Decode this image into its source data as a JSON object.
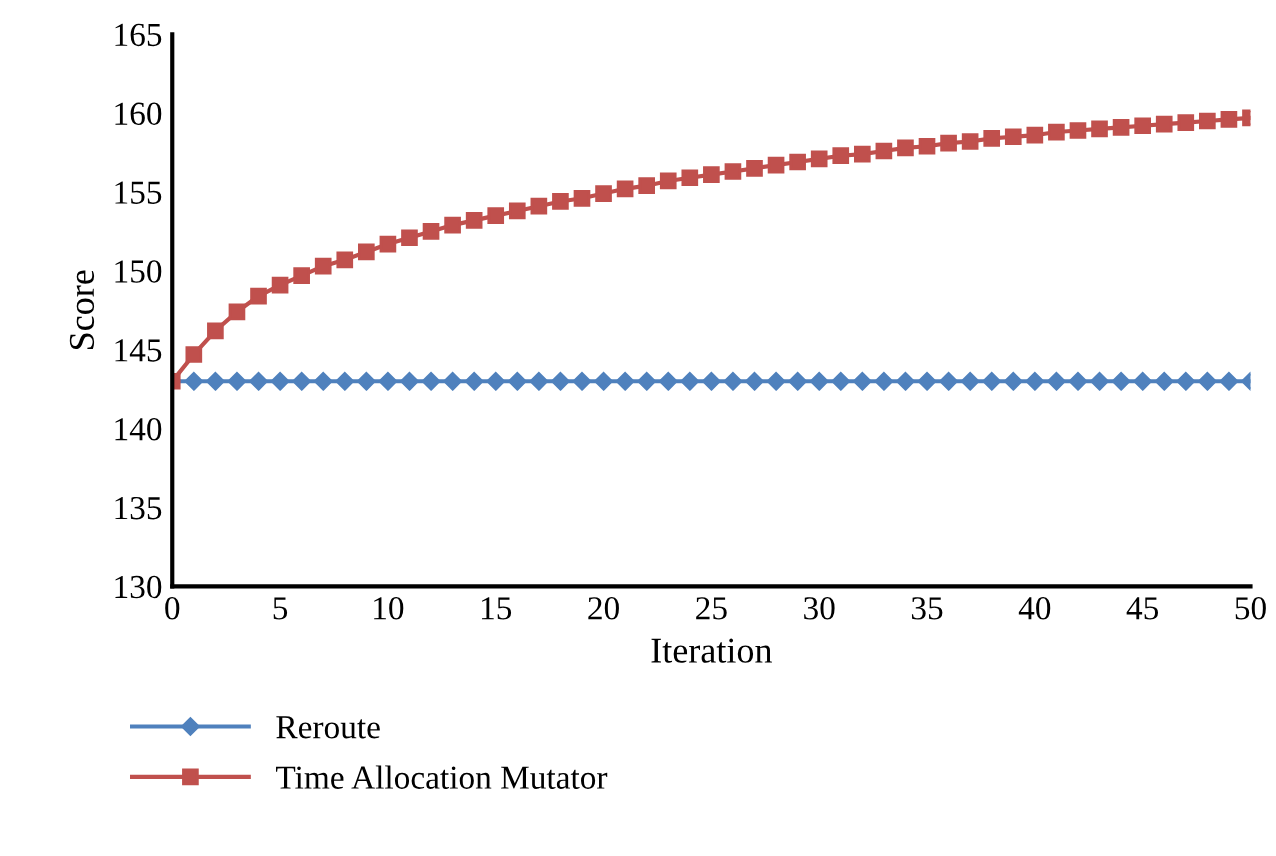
{
  "chart_data": {
    "type": "line",
    "xlabel": "Iteration",
    "ylabel": "Score",
    "x": [
      0,
      1,
      2,
      3,
      4,
      5,
      6,
      7,
      8,
      9,
      10,
      11,
      12,
      13,
      14,
      15,
      16,
      17,
      18,
      19,
      20,
      21,
      22,
      23,
      24,
      25,
      26,
      27,
      28,
      29,
      30,
      31,
      32,
      33,
      34,
      35,
      36,
      37,
      38,
      39,
      40,
      41,
      42,
      43,
      44,
      45,
      46,
      47,
      48,
      49,
      50
    ],
    "series": [
      {
        "name": "Reroute",
        "color": "#4f81bd",
        "marker": "diamond",
        "values": [
          143,
          143,
          143,
          143,
          143,
          143,
          143,
          143,
          143,
          143,
          143,
          143,
          143,
          143,
          143,
          143,
          143,
          143,
          143,
          143,
          143,
          143,
          143,
          143,
          143,
          143,
          143,
          143,
          143,
          143,
          143,
          143,
          143,
          143,
          143,
          143,
          143,
          143,
          143,
          143,
          143,
          143,
          143,
          143,
          143,
          143,
          143,
          143,
          143,
          143,
          143
        ]
      },
      {
        "name": "Time Allocation Mutator",
        "color": "#c0504d",
        "marker": "square",
        "values": [
          143,
          144.7,
          146.2,
          147.4,
          148.4,
          149.1,
          149.7,
          150.3,
          150.7,
          151.2,
          151.7,
          152.1,
          152.5,
          152.9,
          153.2,
          153.5,
          153.8,
          154.1,
          154.4,
          154.6,
          154.9,
          155.2,
          155.4,
          155.7,
          155.9,
          156.1,
          156.3,
          156.5,
          156.7,
          156.9,
          157.1,
          157.3,
          157.4,
          157.6,
          157.8,
          157.9,
          158.1,
          158.2,
          158.4,
          158.5,
          158.6,
          158.8,
          158.9,
          159.0,
          159.1,
          159.2,
          159.3,
          159.4,
          159.5,
          159.6,
          159.7
        ]
      }
    ],
    "xlim": [
      0,
      50
    ],
    "xticks": [
      0,
      5,
      10,
      15,
      20,
      25,
      30,
      35,
      40,
      45,
      50
    ],
    "ylim": [
      130,
      165
    ],
    "yticks": [
      130,
      135,
      140,
      145,
      150,
      155,
      160,
      165
    ],
    "grid": false,
    "legend": "bottom left"
  }
}
